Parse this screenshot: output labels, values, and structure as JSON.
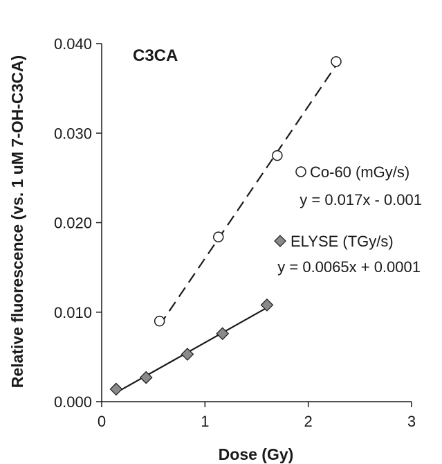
{
  "chart_data": {
    "type": "scatter",
    "title": "C3CA",
    "xlabel": "Dose (Gy)",
    "ylabel": "Relative fluorescence (vs. 1 uM 7-OH-C3CA)",
    "xlim": [
      0,
      3
    ],
    "ylim": [
      0,
      0.04
    ],
    "x_ticks": [
      0,
      1,
      2,
      3
    ],
    "x_tick_labels": [
      "0",
      "1",
      "2",
      "3"
    ],
    "y_ticks": [
      0,
      0.01,
      0.02,
      0.03,
      0.04
    ],
    "y_tick_labels": [
      "0.000",
      "0.010",
      "0.020",
      "0.030",
      "0.040"
    ],
    "grid": false,
    "legend_position": "right",
    "series": [
      {
        "name": "Co-60 (mGy/s)",
        "marker": "open-circle",
        "line_style": "dashed",
        "color": "#1a1a1a",
        "x": [
          0.56,
          1.13,
          1.7,
          2.27
        ],
        "y": [
          0.009,
          0.0184,
          0.0275,
          0.038
        ],
        "fit": {
          "slope": 0.017,
          "intercept": -0.001,
          "label": "y = 0.017x - 0.001"
        }
      },
      {
        "name": "ELYSE (TGy/s)",
        "marker": "filled-diamond",
        "line_style": "solid",
        "color": "#1a1a1a",
        "marker_fill": "#8a8a8a",
        "x": [
          0.14,
          0.43,
          0.83,
          1.17,
          1.6
        ],
        "y": [
          0.0014,
          0.0027,
          0.0053,
          0.0076,
          0.0108
        ],
        "fit": {
          "slope": 0.0065,
          "intercept": 0.0001,
          "label": "y = 0.0065x + 0.0001"
        }
      }
    ]
  }
}
